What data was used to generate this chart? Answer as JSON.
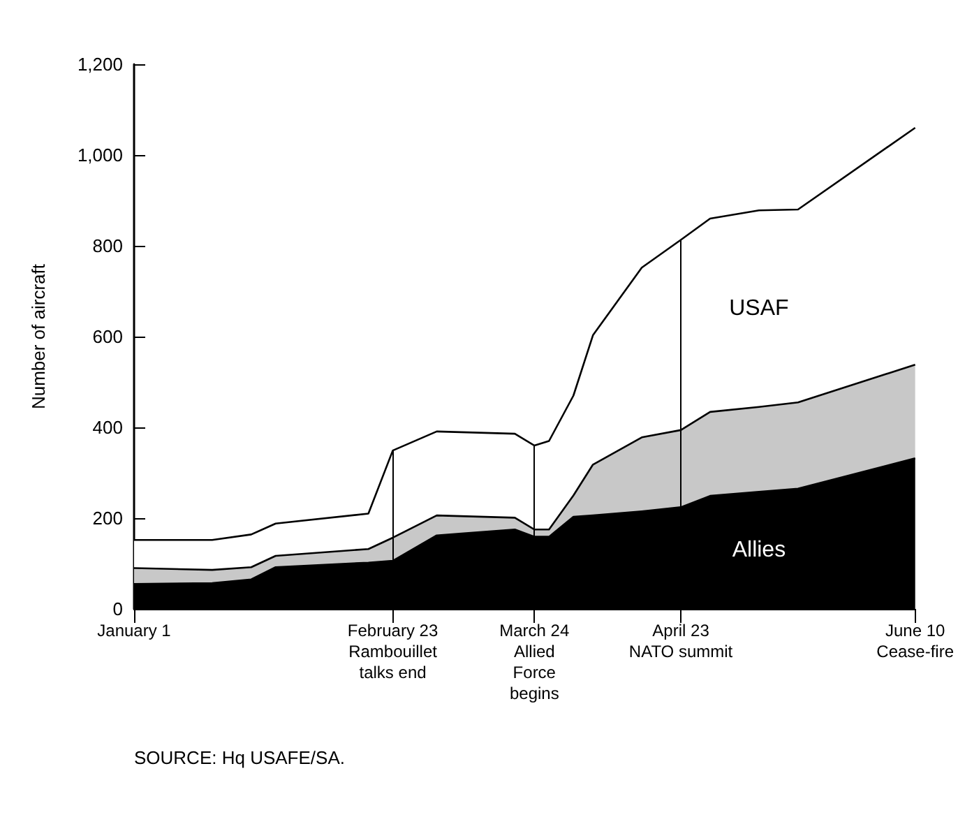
{
  "chart_data": {
    "type": "area",
    "stacked": true,
    "ylabel": "Number of aircraft",
    "x": [
      "--01-01",
      "--01-17",
      "--01-25",
      "--01-30",
      "--02-18",
      "--02-23",
      "--03-04",
      "--03-20",
      "--03-24",
      "--03-27",
      "--04-01",
      "--04-05",
      "--04-15",
      "--04-23",
      "--04-29",
      "--05-09",
      "--05-17",
      "--06-10"
    ],
    "series": [
      {
        "name": "Allies",
        "color": "#000000",
        "values": [
          55,
          57,
          65,
          92,
          102,
          106,
          162,
          175,
          159,
          159,
          203,
          206,
          215,
          224,
          249,
          258,
          265,
          332
        ]
      },
      {
        "color": "#c8c8c8",
        "values": [
          35,
          29,
          27,
          25,
          30,
          51,
          44,
          26,
          16,
          16,
          47,
          112,
          163,
          170,
          185,
          187,
          190,
          206
        ]
      },
      {
        "name": "USAF",
        "color": "#ffffff",
        "values": [
          62,
          66,
          72,
          71,
          78,
          192,
          185,
          185,
          185,
          195,
          220,
          285,
          374,
          419,
          426,
          433,
          425,
          522
        ]
      }
    ],
    "xlim": [
      "--01-01",
      "--06-10"
    ],
    "xticks": [
      {
        "value": "--01-01",
        "label": "January 1"
      },
      {
        "value": "--02-23",
        "label": "February 23\nRambouillet\ntalks end"
      },
      {
        "value": "--03-24",
        "label": "March 24\nAllied\nForce\nbegins"
      },
      {
        "value": "--04-23",
        "label": "April 23\nNATO summit"
      },
      {
        "value": "--06-10",
        "label": "June 10\nCease-fire"
      }
    ],
    "ylim": [
      0,
      1200
    ],
    "yticks": [
      0,
      200,
      400,
      600,
      800,
      {
        "value": 1000,
        "label": "1,000"
      },
      {
        "value": 1200,
        "label": "1,200"
      }
    ],
    "ref_lines": [
      {
        "axis": "x",
        "value": "--02-23"
      },
      {
        "axis": "x",
        "value": "--03-24"
      },
      {
        "axis": "x",
        "value": "--04-23"
      }
    ],
    "grid": false,
    "legend": false,
    "annotations": [
      "SOURCE: Hq USAFE/SA."
    ]
  }
}
